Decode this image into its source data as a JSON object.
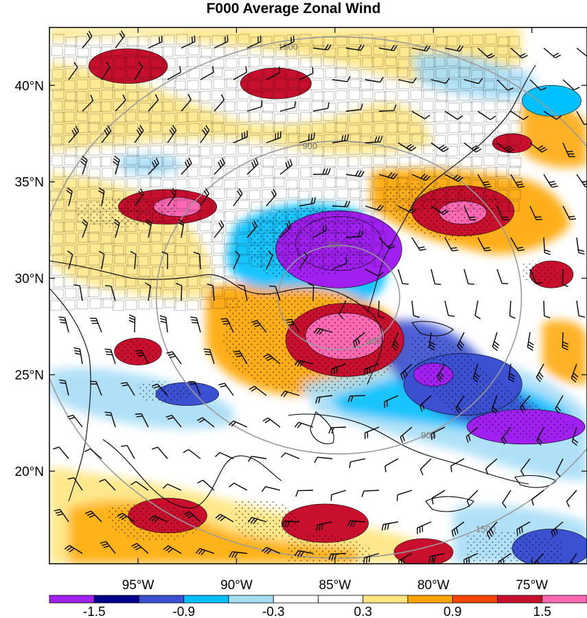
{
  "title": "F000 Average Zonal Wind",
  "map": {
    "lon_range": [
      -99.5,
      -72.2
    ],
    "lat_range": [
      15.2,
      43.0
    ],
    "lon_ticks": [
      {
        "value": -95,
        "label": "95°W"
      },
      {
        "value": -90,
        "label": "90°W"
      },
      {
        "value": -85,
        "label": "85°W"
      },
      {
        "value": -80,
        "label": "80°W"
      },
      {
        "value": -75,
        "label": "75°W"
      }
    ],
    "lat_ticks": [
      {
        "value": 40,
        "label": "40°N"
      },
      {
        "value": 35,
        "label": "35°N"
      },
      {
        "value": 30,
        "label": "30°N"
      },
      {
        "value": 25,
        "label": "25°N"
      },
      {
        "value": 20,
        "label": "20°N"
      }
    ],
    "range_rings": {
      "center_lon": -84.8,
      "center_lat": 29.0,
      "radii_km": [
        300,
        900,
        1500
      ],
      "labels": [
        "300",
        "900",
        "1500"
      ],
      "color": "#9a9a9a"
    }
  },
  "colorbar": {
    "colors": [
      "#a020f0",
      "#00008b",
      "#3c50d2",
      "#00bfff",
      "#a6ddf7",
      "#ffffff",
      "#ffffff",
      "#ffe680",
      "#ffa500",
      "#ff4500",
      "#c8102e",
      "#ff69b4"
    ],
    "levels": [
      -1.5,
      -1.2,
      -0.9,
      -0.6,
      -0.3,
      0,
      0.3,
      0.6,
      0.9,
      1.2,
      1.5
    ],
    "labels": [
      "-1.5",
      "-0.9",
      "-0.3",
      "0.3",
      "0.9",
      "1.5"
    ]
  },
  "field_blobs": [
    {
      "lon": -84.8,
      "lat": 31.5,
      "rx": 3.2,
      "ry": 2.0,
      "level": -1.8
    },
    {
      "lon": -84.8,
      "lat": 31.8,
      "rx": 2.2,
      "ry": 1.4,
      "level": -1.6
    },
    {
      "lon": -84.5,
      "lat": 26.8,
      "rx": 3.0,
      "ry": 1.9,
      "level": 1.4
    },
    {
      "lon": -84.5,
      "lat": 27.0,
      "rx": 2.0,
      "ry": 1.2,
      "level": 1.6
    },
    {
      "lon": -78.5,
      "lat": 33.5,
      "rx": 2.6,
      "ry": 1.3,
      "level": 1.4
    },
    {
      "lon": -78.5,
      "lat": 33.4,
      "rx": 1.2,
      "ry": 0.6,
      "level": 1.8
    },
    {
      "lon": -93.5,
      "lat": 33.7,
      "rx": 2.5,
      "ry": 0.9,
      "level": 1.4
    },
    {
      "lon": -93.0,
      "lat": 33.7,
      "rx": 1.2,
      "ry": 0.5,
      "level": 1.8
    },
    {
      "lon": -95.5,
      "lat": 41.0,
      "rx": 2.0,
      "ry": 0.9,
      "level": 1.2
    },
    {
      "lon": -88.0,
      "lat": 40.1,
      "rx": 1.8,
      "ry": 0.8,
      "level": 1.2
    },
    {
      "lon": -75.3,
      "lat": 22.3,
      "rx": 3.0,
      "ry": 0.9,
      "level": -1.6
    },
    {
      "lon": -78.5,
      "lat": 24.5,
      "rx": 3.0,
      "ry": 1.6,
      "level": -1.1
    },
    {
      "lon": -80.0,
      "lat": 25.0,
      "rx": 1.0,
      "ry": 0.6,
      "level": -1.6
    },
    {
      "lon": -92.5,
      "lat": 24.0,
      "rx": 1.6,
      "ry": 0.6,
      "level": -1.2
    },
    {
      "lon": -95.0,
      "lat": 26.2,
      "rx": 1.2,
      "ry": 0.7,
      "level": 1.2
    },
    {
      "lon": -74.0,
      "lat": 30.2,
      "rx": 1.1,
      "ry": 0.7,
      "level": 1.4
    },
    {
      "lon": -93.5,
      "lat": 17.7,
      "rx": 2.0,
      "ry": 0.9,
      "level": 1.2
    },
    {
      "lon": -85.5,
      "lat": 17.3,
      "rx": 2.2,
      "ry": 1.0,
      "level": 1.2
    },
    {
      "lon": -80.5,
      "lat": 15.8,
      "rx": 1.5,
      "ry": 0.7,
      "level": 1.2
    },
    {
      "lon": -74.0,
      "lat": 16.0,
      "rx": 2.0,
      "ry": 1.0,
      "level": -1.2
    },
    {
      "lon": -76.0,
      "lat": 37.0,
      "rx": 1.0,
      "ry": 0.5,
      "level": 1.2
    },
    {
      "lon": -74.0,
      "lat": 39.2,
      "rx": 1.5,
      "ry": 0.8,
      "level": -0.8
    }
  ]
}
